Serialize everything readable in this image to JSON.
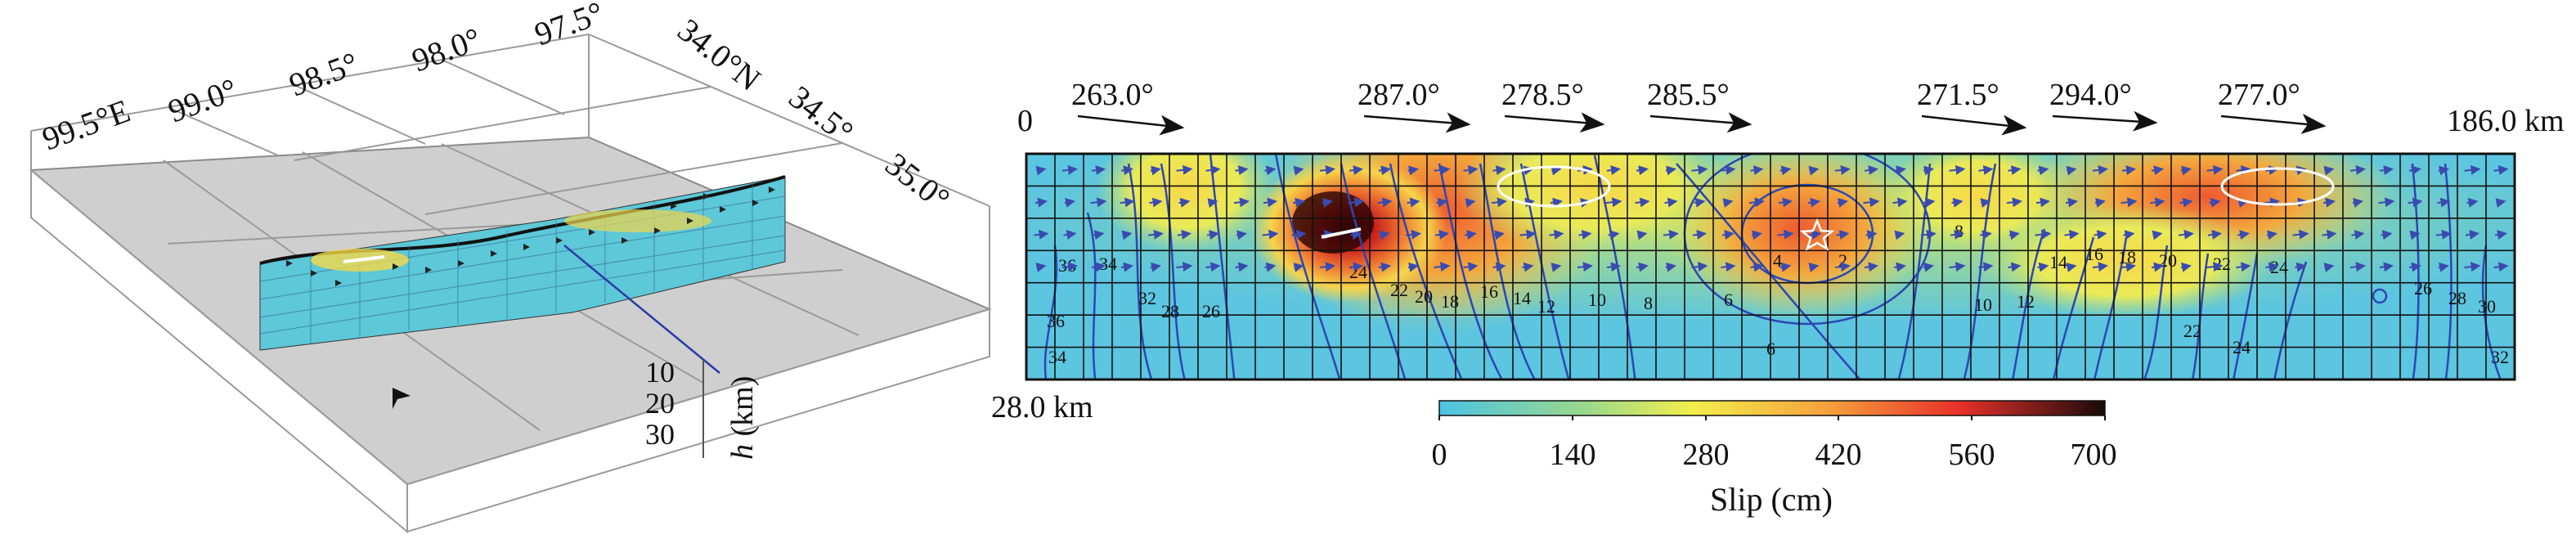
{
  "left_panel": {
    "lon_labels": [
      "99.5°E",
      "99.0°",
      "98.5°",
      "98.0°",
      "97.5°"
    ],
    "lat_labels": [
      "34.0°N",
      "34.5°",
      "35.0°"
    ],
    "depth_ticks": [
      "10",
      "20",
      "30"
    ],
    "depth_label_italic": "h",
    "depth_label_unit": " (km)"
  },
  "right_panel": {
    "start_label": "0",
    "end_label": "186.0 km",
    "depth_label": "28.0 km",
    "strike_labels": [
      "263.0°",
      "287.0°",
      "278.5°",
      "285.5°",
      "271.5°",
      "294.0°",
      "277.0°"
    ],
    "contour_labels": [
      "36",
      "34",
      "32",
      "28",
      "26",
      "24",
      "22",
      "20",
      "18",
      "16",
      "14",
      "12",
      "10",
      "8",
      "6",
      "4",
      "2",
      "36",
      "34",
      "8",
      "10",
      "12",
      "14",
      "16",
      "18",
      "20",
      "22",
      "24",
      "26",
      "28",
      "30",
      "32",
      "22",
      "24",
      "6"
    ],
    "colorbar": {
      "ticks": [
        "0",
        "140",
        "280",
        "420",
        "560",
        "700"
      ],
      "title": "Slip (cm)",
      "colors": [
        "#4cc3e3",
        "#9ad98b",
        "#f3ee4c",
        "#f6a23c",
        "#e8312a",
        "#1a0a0a"
      ]
    }
  }
}
